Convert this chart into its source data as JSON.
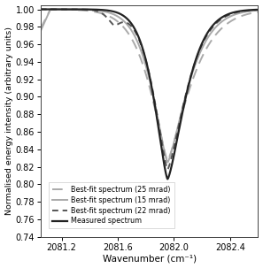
{
  "title": "",
  "xlabel": "Wavenumber (cm⁻¹)",
  "ylabel": "Normalised energy intensity (arbitrary units)",
  "xlim": [
    2081.05,
    2082.6
  ],
  "ylim": [
    0.74,
    1.005
  ],
  "xticks": [
    2081.2,
    2081.6,
    2082.0,
    2082.4
  ],
  "yticks": [
    0.74,
    0.76,
    0.78,
    0.8,
    0.82,
    0.84,
    0.86,
    0.88,
    0.9,
    0.92,
    0.94,
    0.96,
    0.98,
    1.0
  ],
  "legend": [
    {
      "label": "Measured spectrum",
      "color": "#222222",
      "lw": 1.6,
      "ls": "-"
    },
    {
      "label": "Best-fit spectrum (15 mrad)",
      "color": "#aaaaaa",
      "lw": 1.4,
      "ls": "-"
    },
    {
      "label": "Best-fit spectrum (22 mrad)",
      "color": "#555555",
      "lw": 1.4,
      "ls": "--"
    },
    {
      "label": "Best-fit spectrum (25 mrad)",
      "color": "#aaaaaa",
      "lw": 1.4,
      "ls": "--"
    }
  ]
}
